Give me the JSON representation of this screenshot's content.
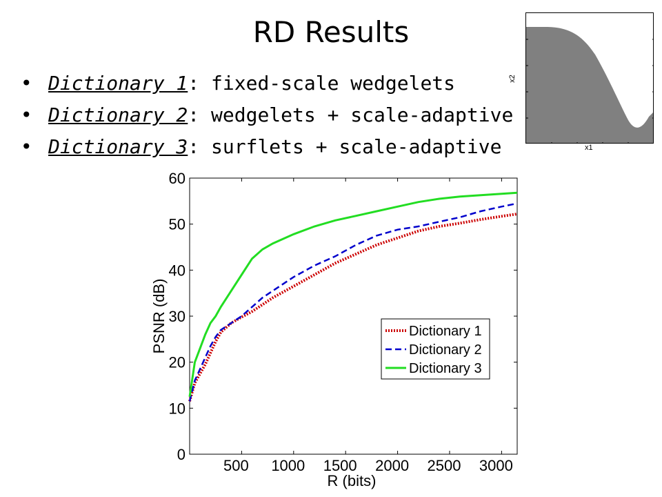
{
  "slide": {
    "title": "RD Results",
    "bullets": [
      {
        "dict": "Dictionary 1",
        "rest": ": fixed-scale wedgelets"
      },
      {
        "dict": "Dictionary 2",
        "rest": ": wedgelets + scale-adaptive"
      },
      {
        "dict": "Dictionary 3",
        "rest": ": surflets + scale-adaptive"
      }
    ],
    "inset": {
      "xlabel": "x1",
      "ylabel": "x2",
      "fill_color": "#808080"
    }
  },
  "chart_data": {
    "type": "line",
    "xlabel": "R (bits)",
    "ylabel": "PSNR (dB)",
    "xlim": [
      0,
      3150
    ],
    "ylim": [
      0,
      60
    ],
    "xticks": [
      500,
      1000,
      1500,
      2000,
      2500,
      3000
    ],
    "yticks": [
      0,
      10,
      20,
      30,
      40,
      50,
      60
    ],
    "grid": false,
    "legend_position": "center-right",
    "series": [
      {
        "name": "Dictionary 1",
        "color": "#cc0000",
        "style": "dotted",
        "x": [
          0,
          50,
          100,
          150,
          200,
          250,
          300,
          400,
          500,
          600,
          700,
          800,
          1000,
          1200,
          1400,
          1600,
          1800,
          2000,
          2200,
          2400,
          2600,
          2800,
          3000,
          3150
        ],
        "y": [
          11.5,
          15.5,
          17.5,
          19.5,
          22,
          24.5,
          26.5,
          28.5,
          29.8,
          31,
          32.5,
          34,
          36.5,
          39,
          41.5,
          43.5,
          45.5,
          47,
          48.5,
          49.5,
          50.2,
          51,
          51.7,
          52.2
        ]
      },
      {
        "name": "Dictionary 2",
        "color": "#0000cc",
        "style": "dashed",
        "x": [
          0,
          50,
          100,
          150,
          200,
          250,
          300,
          400,
          500,
          600,
          700,
          800,
          1000,
          1200,
          1400,
          1600,
          1800,
          2000,
          2200,
          2400,
          2600,
          2800,
          3000,
          3150
        ],
        "y": [
          11.5,
          16,
          18.5,
          21,
          23.5,
          25.5,
          27,
          28.5,
          30,
          32,
          34,
          35.5,
          38.5,
          41,
          43,
          45.5,
          47.5,
          48.8,
          49.5,
          50.5,
          51.5,
          52.8,
          53.8,
          54.5
        ]
      },
      {
        "name": "Dictionary 3",
        "color": "#22dd22",
        "style": "solid",
        "x": [
          0,
          50,
          100,
          150,
          200,
          250,
          300,
          400,
          500,
          600,
          700,
          800,
          1000,
          1200,
          1400,
          1600,
          1800,
          2000,
          2200,
          2400,
          2600,
          2800,
          3000,
          3150
        ],
        "y": [
          12.5,
          20,
          23,
          26,
          28.5,
          30,
          32,
          35.5,
          39,
          42.5,
          44.5,
          45.8,
          47.8,
          49.5,
          50.8,
          51.8,
          52.8,
          53.8,
          54.8,
          55.5,
          56,
          56.3,
          56.6,
          56.8
        ]
      }
    ]
  }
}
